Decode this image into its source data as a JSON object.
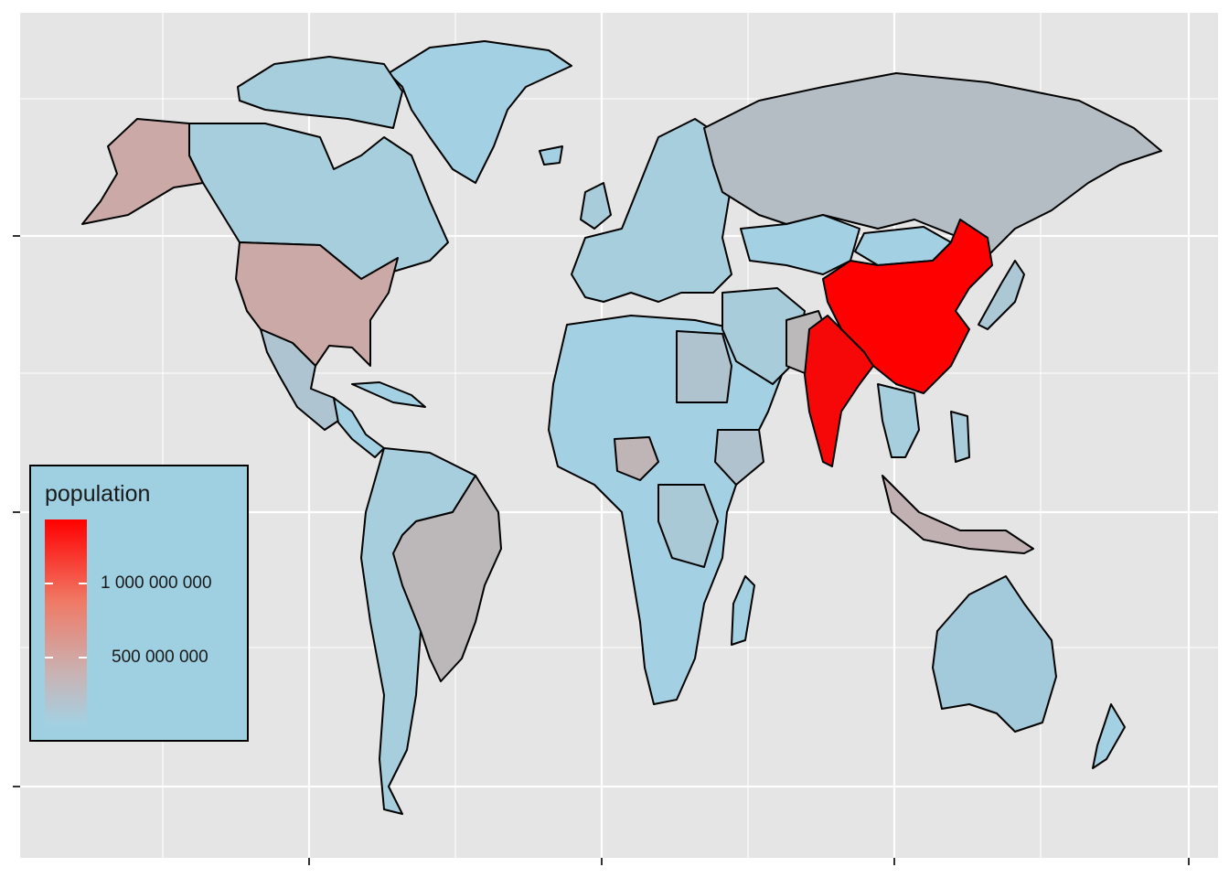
{
  "colors": {
    "panel_bg": "#e5e5e5",
    "gridline": "#ffffff",
    "ocean_legend_bg": "#9fd0e2",
    "low": "#a3d1e3",
    "high": "#ff0000",
    "border": "#000000"
  },
  "legend": {
    "title": "population",
    "breaks": [
      {
        "label": "1 000 000 000",
        "value": 1000000000
      },
      {
        "label": "500 000 000",
        "value": 500000000
      }
    ],
    "position": "bottom-left"
  },
  "chart_data": {
    "type": "choropleth",
    "fill_variable": "population",
    "scale": {
      "low": "#a3d1e3",
      "high": "#ff0000"
    },
    "regions": [
      {
        "name": "China",
        "population": 1370000000
      },
      {
        "name": "India",
        "population": 1250000000
      },
      {
        "name": "United States",
        "population": 320000000
      },
      {
        "name": "Indonesia",
        "population": 255000000
      },
      {
        "name": "Brazil",
        "population": 205000000
      },
      {
        "name": "Pakistan",
        "population": 190000000
      },
      {
        "name": "Nigeria",
        "population": 180000000
      },
      {
        "name": "Russia",
        "population": 145000000
      },
      {
        "name": "Mexico",
        "population": 125000000
      },
      {
        "name": "Ethiopia",
        "population": 100000000
      },
      {
        "name": "Egypt",
        "population": 90000000
      },
      {
        "name": "Congo DR",
        "population": 75000000
      },
      {
        "name": "Canada",
        "population": 36000000
      },
      {
        "name": "Australia",
        "population": 24000000
      },
      {
        "name": "Greenland",
        "population": 56000
      }
    ],
    "grid": true
  }
}
